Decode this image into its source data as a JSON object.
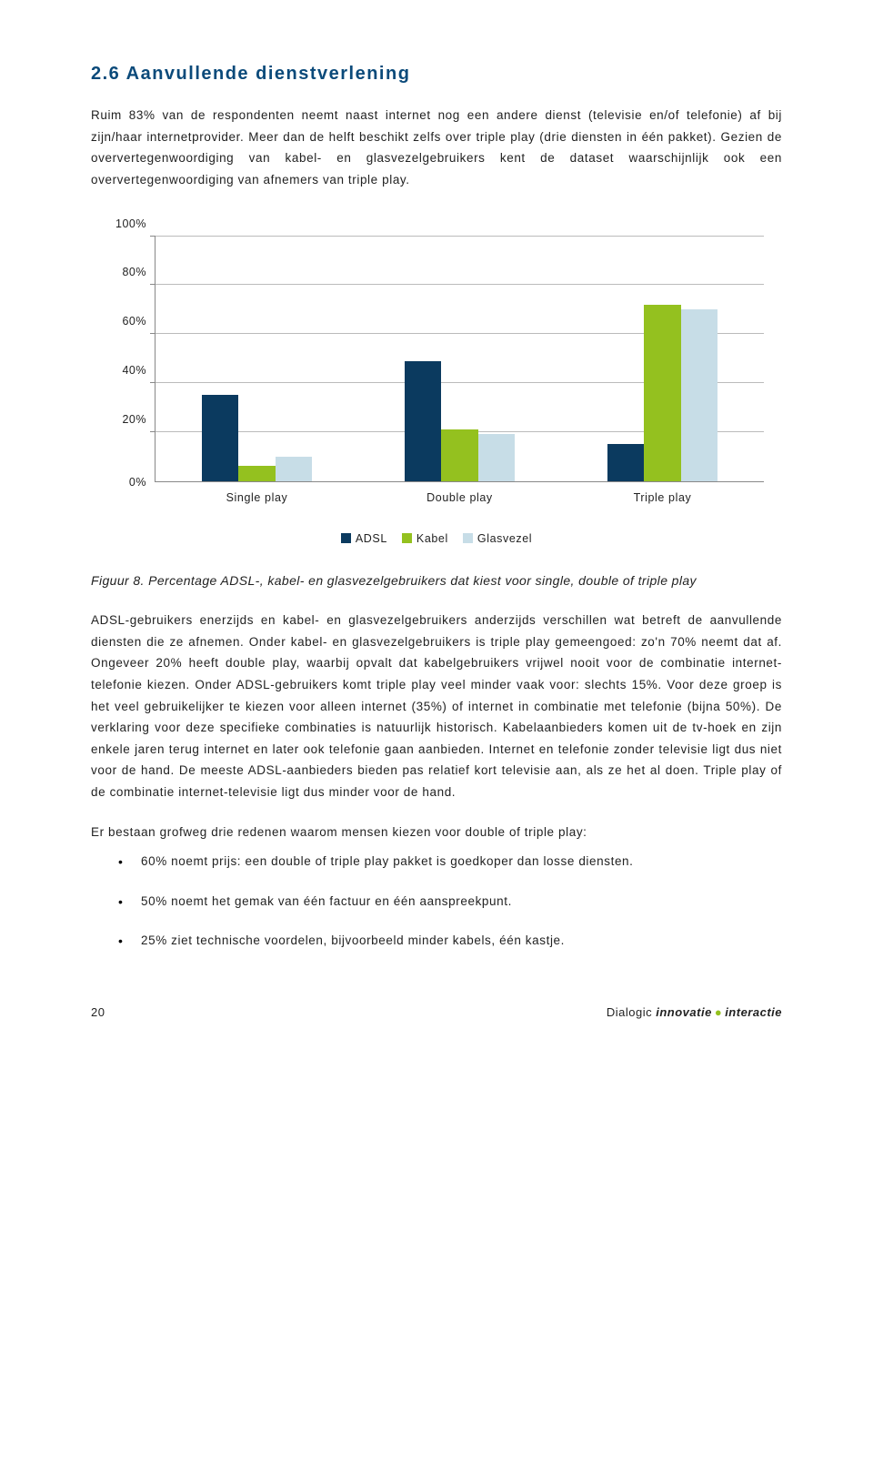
{
  "section": {
    "number": "2.6",
    "title": "Aanvullende dienstverlening"
  },
  "paragraphs": {
    "p1": "Ruim 83% van de respondenten neemt naast internet nog een andere dienst (televisie en/of telefonie) af bij zijn/haar internetprovider. Meer dan de helft beschikt zelfs over triple play (drie diensten in één pakket). Gezien de oververtegenwoordiging van kabel- en glasvezelgebruikers kent de dataset waarschijnlijk ook een oververtegenwoordiging van afnemers van triple play.",
    "p2": "ADSL-gebruikers enerzijds en kabel- en glasvezelgebruikers anderzijds verschillen wat betreft de aanvullende diensten die ze afnemen. Onder kabel- en glasvezelgebruikers is triple play gemeengoed: zo'n 70% neemt dat af. Ongeveer 20% heeft double play, waarbij opvalt dat kabelgebruikers vrijwel nooit voor de combinatie internet-telefonie kiezen. Onder ADSL-gebruikers komt triple play veel minder vaak voor: slechts 15%. Voor deze groep is het veel gebruikelijker te kiezen voor alleen internet (35%) of internet in combinatie met telefonie (bijna 50%). De verklaring voor deze specifieke combinaties is natuurlijk historisch. Kabelaanbieders komen uit de tv-hoek en zijn enkele jaren terug internet en later ook telefonie gaan aanbieden. Internet en telefonie zonder televisie ligt dus niet voor de hand. De meeste ADSL-aanbieders bieden pas relatief kort televisie aan, als ze het al doen. Triple play of de combinatie internet-televisie ligt dus minder voor de hand.",
    "p3": "Er bestaan grofweg drie redenen waarom mensen kiezen voor double of triple play:"
  },
  "bullets": {
    "b1": "60% noemt prijs: een double of triple play pakket is goedkoper dan losse diensten.",
    "b2": "50% noemt het gemak van één factuur en één aanspreekpunt.",
    "b3": "25% ziet technische voordelen, bijvoorbeeld minder kabels, één kastje."
  },
  "chart": {
    "type": "bar",
    "caption": "Figuur 8. Percentage ADSL-, kabel- en glasvezelgebruikers dat kiest voor single, double of triple play",
    "categories": [
      "Single play",
      "Double play",
      "Triple play"
    ],
    "series": [
      {
        "name": "ADSL",
        "color": "#0b3a5f",
        "values": [
          35,
          49,
          15
        ]
      },
      {
        "name": "Kabel",
        "color": "#94c11f",
        "values": [
          6,
          21,
          72
        ]
      },
      {
        "name": "Glasvezel",
        "color": "#c7dde7",
        "values": [
          10,
          19,
          70
        ]
      }
    ],
    "ylim": [
      0,
      100
    ],
    "ytick_step": 20,
    "ylabels": [
      "0%",
      "20%",
      "40%",
      "60%",
      "80%",
      "100%"
    ],
    "background_color": "#ffffff",
    "grid_color": "#bbbbbb",
    "bar_width_pct": 6,
    "group_gap_pct": 33.33,
    "label_fontsize": 12.5
  },
  "footer": {
    "page_number": "20",
    "brand_firm": "Dialogic",
    "brand_i1": "innovatie",
    "brand_i2": "interactie"
  },
  "colors": {
    "heading": "#0b4a7a",
    "accent_green": "#94c11f"
  }
}
